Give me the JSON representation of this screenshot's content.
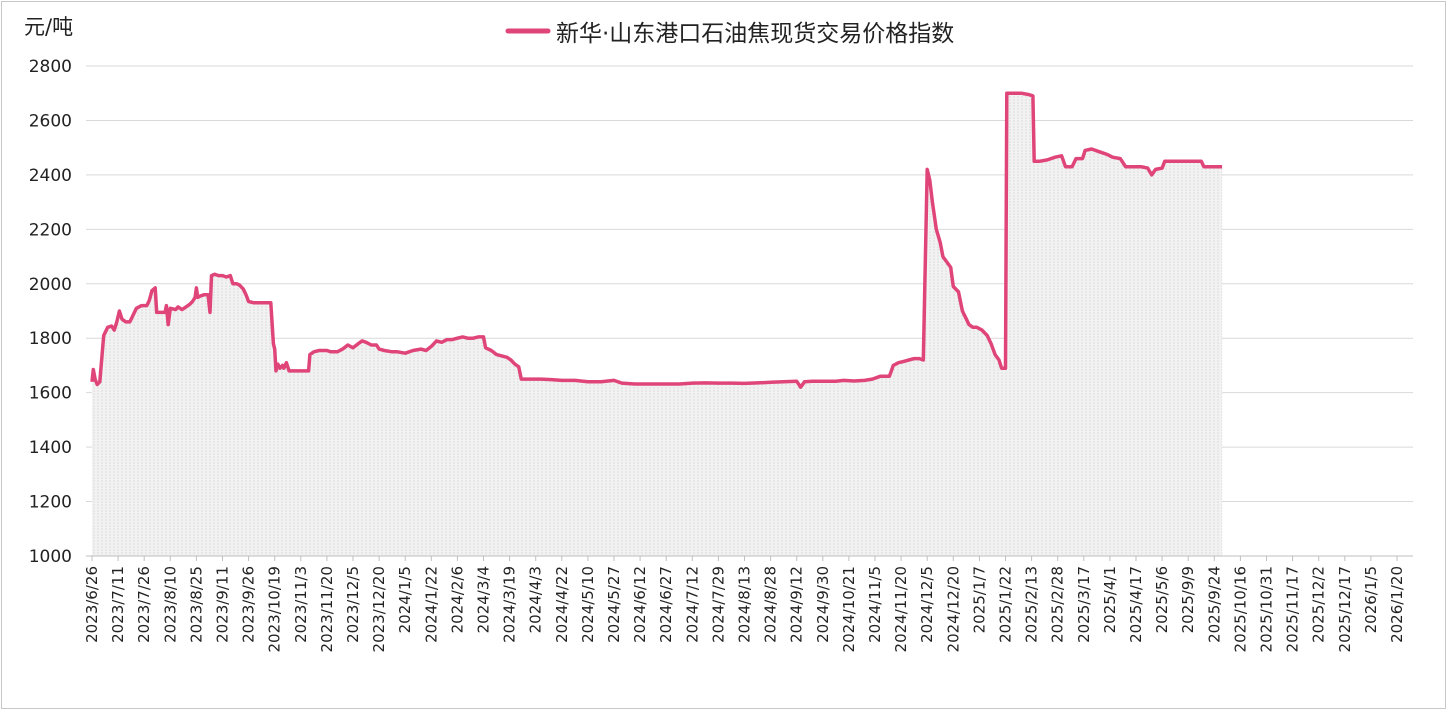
{
  "chart_data": {
    "type": "line",
    "title": "",
    "ylabel": "元/吨",
    "xlabel": "",
    "ylim": [
      1000,
      2800
    ],
    "yticks": [
      1000,
      1200,
      1400,
      1600,
      1800,
      2000,
      2200,
      2400,
      2600,
      2800
    ],
    "grid": true,
    "legend_position": "top-center",
    "x_tick_labels": [
      "2023/6/26",
      "2023/7/11",
      "2023/7/26",
      "2023/8/10",
      "2023/8/25",
      "2023/9/11",
      "2023/9/26",
      "2023/10/19",
      "2023/11/3",
      "2023/11/20",
      "2023/12/5",
      "2023/12/20",
      "2024/1/5",
      "2024/1/22",
      "2024/2/6",
      "2024/3/4",
      "2024/3/19",
      "2024/4/3",
      "2024/4/22",
      "2024/5/10",
      "2024/5/27",
      "2024/6/12",
      "2024/6/27",
      "2024/7/12",
      "2024/7/29",
      "2024/8/13",
      "2024/8/28",
      "2024/9/12",
      "2024/9/30",
      "2024/10/21",
      "2024/11/5",
      "2024/11/20",
      "2024/12/5",
      "2024/12/20",
      "2025/1/7",
      "2025/1/22",
      "2025/2/13",
      "2025/2/28",
      "2025/3/17",
      "2025/4/1",
      "2025/4/17",
      "2025/5/6",
      "2025/9/9",
      "2025/9/24",
      "2025/10/16",
      "2025/10/31",
      "2025/11/17",
      "2025/12/2",
      "2025/12/17",
      "2026/1/5",
      "2026/1/20"
    ],
    "series": [
      {
        "name": "新华·山东港口石油焦现货交易价格指数",
        "color": "#e0457a",
        "fill_color": "#e6e6e6",
        "points": [
          [
            0,
            1640
          ],
          [
            0.05,
            1685
          ],
          [
            0.12,
            1650
          ],
          [
            0.2,
            1630
          ],
          [
            0.3,
            1640
          ],
          [
            0.45,
            1810
          ],
          [
            0.6,
            1840
          ],
          [
            0.75,
            1845
          ],
          [
            0.85,
            1830
          ],
          [
            0.95,
            1860
          ],
          [
            1.05,
            1900
          ],
          [
            1.15,
            1870
          ],
          [
            1.3,
            1860
          ],
          [
            1.45,
            1860
          ],
          [
            1.55,
            1880
          ],
          [
            1.7,
            1910
          ],
          [
            1.9,
            1920
          ],
          [
            2.0,
            1920
          ],
          [
            2.1,
            1920
          ],
          [
            2.2,
            1940
          ],
          [
            2.3,
            1975
          ],
          [
            2.42,
            1985
          ],
          [
            2.48,
            1895
          ],
          [
            2.6,
            1895
          ],
          [
            2.8,
            1895
          ],
          [
            2.85,
            1920
          ],
          [
            2.92,
            1850
          ],
          [
            3.0,
            1910
          ],
          [
            3.2,
            1905
          ],
          [
            3.3,
            1915
          ],
          [
            3.45,
            1905
          ],
          [
            3.6,
            1915
          ],
          [
            3.75,
            1925
          ],
          [
            3.85,
            1935
          ],
          [
            3.95,
            1950
          ],
          [
            4.0,
            1985
          ],
          [
            4.05,
            1950
          ],
          [
            4.15,
            1955
          ],
          [
            4.3,
            1960
          ],
          [
            4.45,
            1960
          ],
          [
            4.52,
            1895
          ],
          [
            4.58,
            2030
          ],
          [
            4.7,
            2035
          ],
          [
            4.85,
            2030
          ],
          [
            5.0,
            2030
          ],
          [
            5.15,
            2025
          ],
          [
            5.3,
            2030
          ],
          [
            5.4,
            2000
          ],
          [
            5.55,
            2000
          ],
          [
            5.65,
            1995
          ],
          [
            5.8,
            1980
          ],
          [
            5.9,
            1960
          ],
          [
            6.0,
            1935
          ],
          [
            6.2,
            1930
          ],
          [
            6.4,
            1930
          ],
          [
            6.7,
            1930
          ],
          [
            6.85,
            1930
          ],
          [
            6.95,
            1780
          ],
          [
            7.0,
            1760
          ],
          [
            7.05,
            1680
          ],
          [
            7.12,
            1705
          ],
          [
            7.2,
            1690
          ],
          [
            7.3,
            1700
          ],
          [
            7.35,
            1690
          ],
          [
            7.45,
            1710
          ],
          [
            7.55,
            1680
          ],
          [
            7.75,
            1680
          ],
          [
            8.0,
            1680
          ],
          [
            8.3,
            1680
          ],
          [
            8.35,
            1740
          ],
          [
            8.5,
            1750
          ],
          [
            8.7,
            1755
          ],
          [
            9.0,
            1755
          ],
          [
            9.15,
            1750
          ],
          [
            9.4,
            1750
          ],
          [
            9.6,
            1760
          ],
          [
            9.8,
            1775
          ],
          [
            10.0,
            1765
          ],
          [
            10.2,
            1780
          ],
          [
            10.35,
            1790
          ],
          [
            10.5,
            1785
          ],
          [
            10.7,
            1775
          ],
          [
            10.9,
            1775
          ],
          [
            11.0,
            1760
          ],
          [
            11.2,
            1755
          ],
          [
            11.5,
            1750
          ],
          [
            11.7,
            1750
          ],
          [
            12.0,
            1745
          ],
          [
            12.3,
            1755
          ],
          [
            12.6,
            1760
          ],
          [
            12.8,
            1755
          ],
          [
            13.0,
            1770
          ],
          [
            13.2,
            1790
          ],
          [
            13.4,
            1785
          ],
          [
            13.6,
            1795
          ],
          [
            13.8,
            1795
          ],
          [
            14.0,
            1800
          ],
          [
            14.2,
            1805
          ],
          [
            14.4,
            1800
          ],
          [
            14.6,
            1800
          ],
          [
            14.8,
            1805
          ],
          [
            15.0,
            1805
          ],
          [
            15.08,
            1765
          ],
          [
            15.3,
            1755
          ],
          [
            15.5,
            1740
          ],
          [
            15.7,
            1735
          ],
          [
            15.9,
            1730
          ],
          [
            16.05,
            1720
          ],
          [
            16.2,
            1705
          ],
          [
            16.35,
            1695
          ],
          [
            16.45,
            1650
          ],
          [
            16.8,
            1650
          ],
          [
            17.2,
            1650
          ],
          [
            17.6,
            1648
          ],
          [
            18.0,
            1645
          ],
          [
            18.5,
            1645
          ],
          [
            19.0,
            1640
          ],
          [
            19.5,
            1640
          ],
          [
            20.0,
            1645
          ],
          [
            20.3,
            1635
          ],
          [
            20.8,
            1632
          ],
          [
            21.3,
            1632
          ],
          [
            22.0,
            1632
          ],
          [
            22.5,
            1632
          ],
          [
            23.0,
            1635
          ],
          [
            23.5,
            1636
          ],
          [
            24.0,
            1635
          ],
          [
            24.5,
            1635
          ],
          [
            25.0,
            1634
          ],
          [
            25.5,
            1636
          ],
          [
            26.0,
            1638
          ],
          [
            26.5,
            1640
          ],
          [
            27.0,
            1642
          ],
          [
            27.15,
            1620
          ],
          [
            27.3,
            1640
          ],
          [
            27.6,
            1642
          ],
          [
            28.0,
            1642
          ],
          [
            28.5,
            1642
          ],
          [
            28.8,
            1645
          ],
          [
            29.2,
            1643
          ],
          [
            29.6,
            1645
          ],
          [
            29.9,
            1650
          ],
          [
            30.2,
            1660
          ],
          [
            30.55,
            1660
          ],
          [
            30.7,
            1700
          ],
          [
            30.9,
            1710
          ],
          [
            31.1,
            1715
          ],
          [
            31.3,
            1720
          ],
          [
            31.5,
            1725
          ],
          [
            31.7,
            1725
          ],
          [
            31.85,
            1720
          ],
          [
            32.0,
            2420
          ],
          [
            32.1,
            2380
          ],
          [
            32.2,
            2300
          ],
          [
            32.35,
            2200
          ],
          [
            32.5,
            2150
          ],
          [
            32.6,
            2100
          ],
          [
            32.75,
            2080
          ],
          [
            32.9,
            2060
          ],
          [
            33.0,
            1990
          ],
          [
            33.2,
            1970
          ],
          [
            33.35,
            1900
          ],
          [
            33.5,
            1870
          ],
          [
            33.6,
            1850
          ],
          [
            33.75,
            1840
          ],
          [
            33.9,
            1840
          ],
          [
            34.1,
            1830
          ],
          [
            34.3,
            1810
          ],
          [
            34.45,
            1780
          ],
          [
            34.6,
            1740
          ],
          [
            34.75,
            1720
          ],
          [
            34.85,
            1690
          ],
          [
            35.0,
            1690
          ],
          [
            35.05,
            2700
          ],
          [
            35.3,
            2700
          ],
          [
            35.6,
            2700
          ],
          [
            35.9,
            2695
          ],
          [
            36.05,
            2690
          ],
          [
            36.1,
            2450
          ],
          [
            36.3,
            2450
          ],
          [
            36.6,
            2455
          ],
          [
            36.9,
            2465
          ],
          [
            37.15,
            2470
          ],
          [
            37.3,
            2430
          ],
          [
            37.55,
            2430
          ],
          [
            37.7,
            2460
          ],
          [
            37.95,
            2460
          ],
          [
            38.05,
            2490
          ],
          [
            38.3,
            2495
          ],
          [
            38.6,
            2485
          ],
          [
            38.9,
            2475
          ],
          [
            39.1,
            2465
          ],
          [
            39.4,
            2460
          ],
          [
            39.6,
            2430
          ],
          [
            39.9,
            2430
          ],
          [
            40.2,
            2430
          ],
          [
            40.45,
            2425
          ],
          [
            40.6,
            2400
          ],
          [
            40.75,
            2420
          ],
          [
            41.0,
            2425
          ],
          [
            41.1,
            2450
          ],
          [
            41.5,
            2450
          ],
          [
            41.9,
            2450
          ],
          [
            42.3,
            2450
          ],
          [
            42.5,
            2450
          ],
          [
            42.6,
            2430
          ],
          [
            43.0,
            2430
          ],
          [
            43.3,
            2430
          ]
        ]
      }
    ]
  }
}
